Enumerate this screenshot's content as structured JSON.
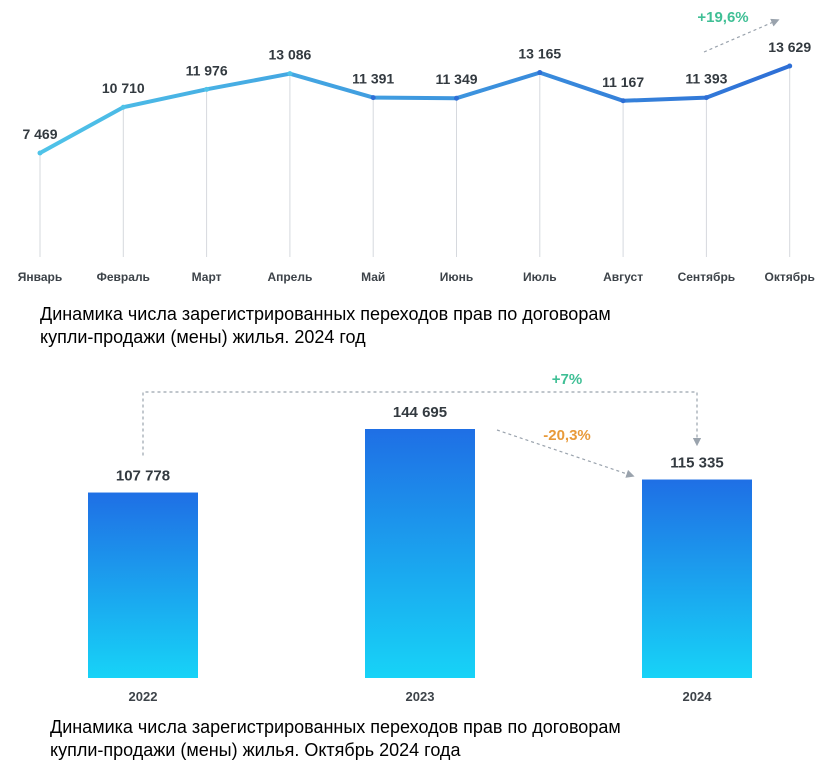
{
  "chart_data": [
    {
      "type": "line",
      "categories": [
        "Январь",
        "Февраль",
        "Март",
        "Апрель",
        "Май",
        "Июнь",
        "Июль",
        "Август",
        "Сентябрь",
        "Октябрь"
      ],
      "values": [
        7469,
        10710,
        11976,
        13086,
        11391,
        11349,
        13165,
        11167,
        11393,
        13629
      ],
      "value_labels": [
        "7 469",
        "10 710",
        "11 976",
        "13 086",
        "11 391",
        "11 349",
        "13 165",
        "11 167",
        "11 393",
        "13 629"
      ],
      "annotation": "+19,6%",
      "caption_lines": [
        "Динамика числа зарегистрированных переходов прав по договорам",
        "купли-продажи (мены) жилья. 2024 год"
      ],
      "line_colors": [
        "#4fc3e8",
        "#2e6fd6"
      ],
      "annotation_color": "#3fbf95"
    },
    {
      "type": "bar",
      "categories": [
        "2022",
        "2023",
        "2024"
      ],
      "values": [
        107778,
        144695,
        115335
      ],
      "value_labels": [
        "107 778",
        "144 695",
        "115 335"
      ],
      "annotations": {
        "total_change": "+7%",
        "last_change": "-20,3%"
      },
      "caption_lines": [
        "Динамика числа зарегистрированных переходов прав по договорам",
        "купли-продажи (мены) жилья. Октябрь 2024 года"
      ],
      "bar_gradient": [
        "#1f6fe5",
        "#17d3f7"
      ],
      "annotation_colors": {
        "total_change": "#3fbf95",
        "last_change": "#e89a3a"
      }
    }
  ]
}
